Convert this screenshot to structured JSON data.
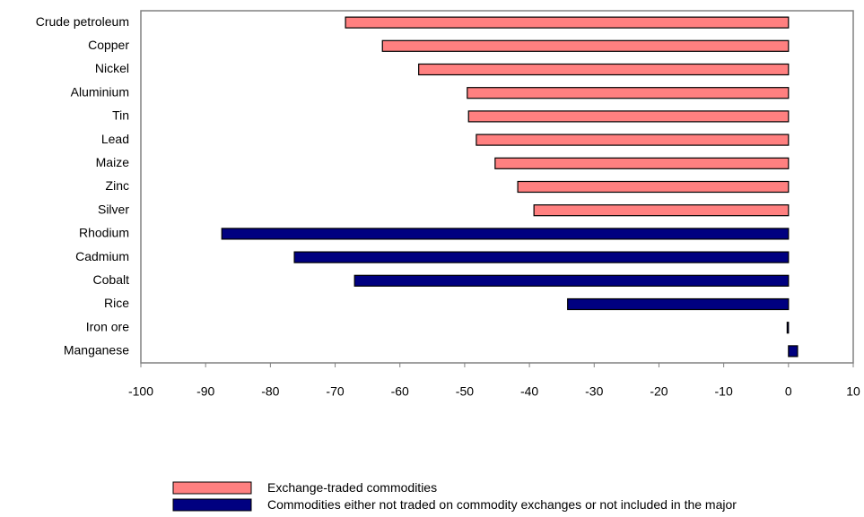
{
  "chart_data": {
    "type": "bar",
    "orientation": "horizontal",
    "categories": [
      "Crude petroleum",
      "Copper",
      "Nickel",
      "Aluminium",
      "Tin",
      "Lead",
      "Maize",
      "Zinc",
      "Silver",
      "Rhodium",
      "Cadmium",
      "Cobalt",
      "Rice",
      "Iron ore",
      "Manganese"
    ],
    "series": [
      {
        "name": "Exchange-traded commodities",
        "color": "#ff8080",
        "values": [
          -68.4,
          -62.7,
          -57.1,
          -49.6,
          -49.4,
          -48.2,
          -45.3,
          -41.8,
          -39.3,
          null,
          null,
          null,
          null,
          null,
          null
        ]
      },
      {
        "name": "Commodities either not traded on commodity exchanges or not included in the major commodity indices",
        "color": "#000080",
        "values": [
          null,
          null,
          null,
          null,
          null,
          null,
          null,
          null,
          null,
          -87.5,
          -76.3,
          -67.0,
          -34.1,
          -0.2,
          1.4
        ]
      }
    ],
    "xlim": [
      -100,
      10
    ],
    "xticks": [
      -100,
      -90,
      -80,
      -70,
      -60,
      -50,
      -40,
      -30,
      -20,
      -10,
      0,
      10
    ],
    "grid": false
  }
}
